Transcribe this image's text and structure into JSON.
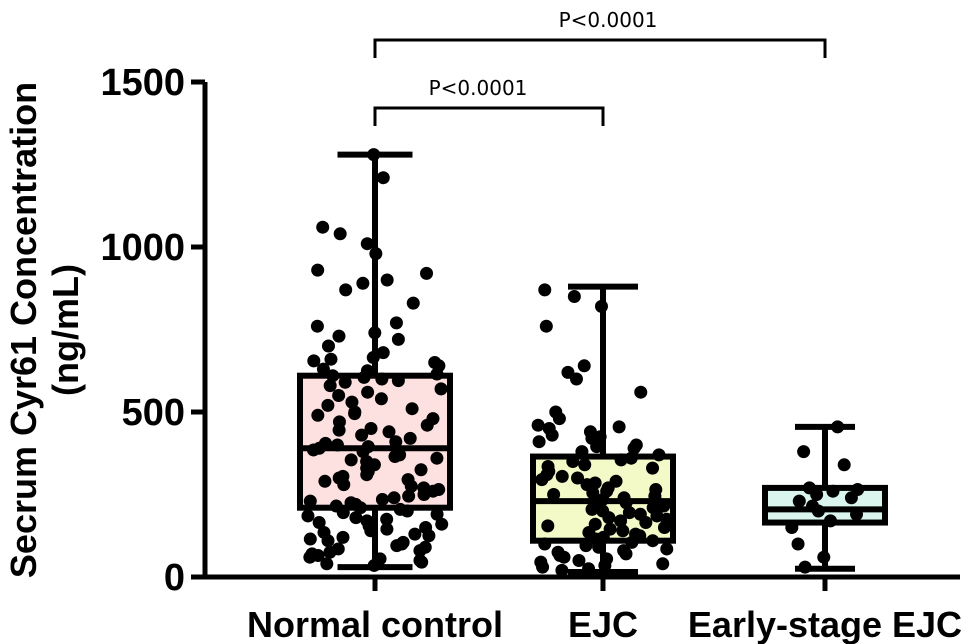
{
  "chart_data": {
    "type": "box",
    "ylabel_lines": [
      "Secrum Cyr61 Concentration",
      "(ng/mL)"
    ],
    "categories": [
      "Normal control",
      "EJC",
      "Early-stage EJC"
    ],
    "ylim": [
      0,
      1500
    ],
    "yticks": [
      0,
      500,
      1000,
      1500
    ],
    "grid": false,
    "boxes": [
      {
        "name": "Normal control",
        "min": 30,
        "q1": 210,
        "median": 390,
        "q3": 610,
        "max": 1280,
        "fill": "#fde0e0"
      },
      {
        "name": "EJC",
        "min": 15,
        "q1": 110,
        "median": 230,
        "q3": 365,
        "max": 880,
        "fill": "#f4f9c8"
      },
      {
        "name": "Early-stage EJC",
        "min": 25,
        "q1": 165,
        "median": 205,
        "q3": 270,
        "max": 455,
        "fill": "#d9f5ee"
      }
    ],
    "points": [
      [
        1280,
        1210,
        1060,
        1040,
        1010,
        980,
        930,
        920,
        900,
        890,
        870,
        830,
        770,
        760,
        740,
        730,
        720,
        700,
        680,
        665,
        660,
        655,
        650,
        640,
        630,
        625,
        615,
        610,
        605,
        600,
        595,
        590,
        580,
        570,
        560,
        550,
        540,
        530,
        520,
        510,
        500,
        495,
        490,
        480,
        470,
        460,
        450,
        445,
        440,
        430,
        420,
        410,
        405,
        400,
        395,
        390,
        385,
        380,
        370,
        365,
        360,
        355,
        350,
        340,
        330,
        325,
        320,
        310,
        305,
        300,
        295,
        290,
        280,
        275,
        270,
        265,
        260,
        250,
        245,
        240,
        235,
        230,
        225,
        220,
        215,
        210,
        205,
        200,
        195,
        190,
        185,
        180,
        175,
        170,
        165,
        160,
        155,
        150,
        145,
        140,
        135,
        130,
        125,
        120,
        115,
        110,
        105,
        100,
        95,
        90,
        85,
        80,
        75,
        70,
        65,
        60,
        55,
        50,
        45,
        40,
        35
      ],
      [
        870,
        850,
        820,
        760,
        640,
        620,
        600,
        560,
        500,
        480,
        460,
        455,
        450,
        440,
        430,
        425,
        420,
        410,
        400,
        395,
        390,
        380,
        370,
        360,
        355,
        350,
        340,
        335,
        330,
        320,
        310,
        305,
        300,
        295,
        290,
        285,
        280,
        270,
        265,
        260,
        255,
        250,
        245,
        240,
        235,
        230,
        225,
        220,
        215,
        210,
        205,
        200,
        195,
        190,
        185,
        180,
        175,
        170,
        165,
        160,
        155,
        150,
        145,
        140,
        135,
        130,
        125,
        120,
        115,
        110,
        105,
        100,
        95,
        90,
        85,
        80,
        75,
        70,
        65,
        60,
        55,
        50,
        45,
        40,
        35,
        30,
        25,
        20
      ],
      [
        455,
        380,
        340,
        270,
        265,
        260,
        250,
        240,
        230,
        215,
        200,
        190,
        170,
        150,
        100,
        60,
        30
      ]
    ],
    "annotations": [
      {
        "from": "Normal control",
        "to": "EJC",
        "text": "P<0.0001"
      },
      {
        "from": "Normal control",
        "to": "Early-stage EJC",
        "text": "P<0.0001"
      }
    ]
  }
}
